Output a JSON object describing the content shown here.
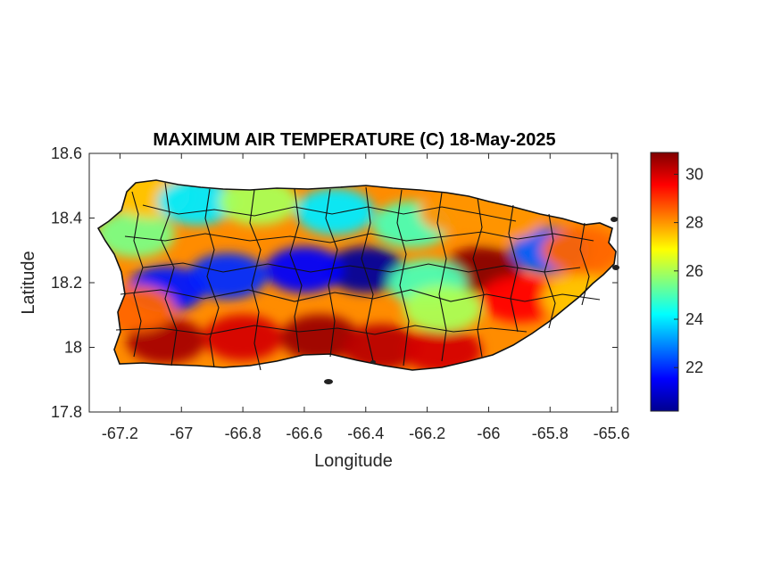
{
  "chart_data": {
    "type": "heatmap",
    "title": "MAXIMUM AIR TEMPERATURE (C) 18-May-2025",
    "xlabel": "Longitude",
    "ylabel": "Latitude",
    "xlim": [
      -67.3,
      -65.58
    ],
    "ylim": [
      17.8,
      18.6
    ],
    "x_ticks": [
      -67.2,
      -67,
      -66.8,
      -66.6,
      -66.4,
      -66.2,
      -66,
      -65.8,
      -65.6
    ],
    "y_ticks": [
      17.8,
      18,
      18.2,
      18.4,
      18.6
    ],
    "x_tick_labels": [
      "-67.2",
      "-67",
      "-66.8",
      "-66.6",
      "-66.4",
      "-66.2",
      "-66",
      "-65.8",
      "-65.6"
    ],
    "y_tick_labels": [
      "17.8",
      "18",
      "18.2",
      "18.4",
      "18.6"
    ],
    "colorbar": {
      "colormap": "jet",
      "range": [
        20.2,
        30.9
      ],
      "ticks": [
        22,
        24,
        26,
        28,
        30
      ],
      "tick_labels": [
        "22",
        "24",
        "26",
        "28",
        "30"
      ]
    },
    "hotspots": [
      {
        "lon": -67.05,
        "lat": 18.02,
        "value": 30.5
      },
      {
        "lon": -66.8,
        "lat": 18.03,
        "value": 30.0
      },
      {
        "lon": -66.55,
        "lat": 18.03,
        "value": 30.6
      },
      {
        "lon": -66.35,
        "lat": 18.0,
        "value": 30.3
      },
      {
        "lon": -66.15,
        "lat": 17.99,
        "value": 30.0
      },
      {
        "lon": -66.02,
        "lat": 18.24,
        "value": 30.8
      },
      {
        "lon": -65.9,
        "lat": 18.15,
        "value": 29.5
      },
      {
        "lon": -66.4,
        "lat": 18.24,
        "value": 20.5
      },
      {
        "lon": -66.6,
        "lat": 18.24,
        "value": 21.5
      },
      {
        "lon": -66.85,
        "lat": 18.22,
        "value": 22.0
      },
      {
        "lon": -67.05,
        "lat": 18.18,
        "value": 21.8
      },
      {
        "lon": -65.8,
        "lat": 18.3,
        "value": 22.5
      },
      {
        "lon": -66.5,
        "lat": 18.42,
        "value": 24.0
      },
      {
        "lon": -66.25,
        "lat": 18.38,
        "value": 25.0
      },
      {
        "lon": -66.1,
        "lat": 18.42,
        "value": 28.0
      },
      {
        "lon": -65.95,
        "lat": 18.4,
        "value": 28.0
      },
      {
        "lon": -65.7,
        "lat": 18.3,
        "value": 28.5
      },
      {
        "lon": -65.7,
        "lat": 18.15,
        "value": 27.5
      },
      {
        "lon": -66.2,
        "lat": 18.2,
        "value": 25.0
      },
      {
        "lon": -66.15,
        "lat": 18.12,
        "value": 26.0
      },
      {
        "lon": -67.15,
        "lat": 18.35,
        "value": 25.5
      },
      {
        "lon": -67.1,
        "lat": 18.47,
        "value": 27.5
      },
      {
        "lon": -66.95,
        "lat": 18.45,
        "value": 24.0
      },
      {
        "lon": -66.75,
        "lat": 18.45,
        "value": 26.0
      },
      {
        "lon": -67.15,
        "lat": 18.12,
        "value": 28.5
      }
    ]
  }
}
